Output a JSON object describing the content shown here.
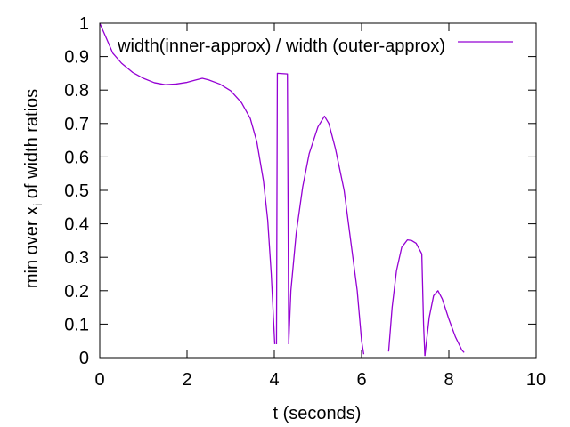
{
  "chart_data": {
    "type": "line",
    "title": "",
    "xlabel": "t (seconds)",
    "ylabel": "min over x",
    "ylabel_subscript": "i",
    "ylabel_suffix": " of width ratios",
    "xlim": [
      0,
      10
    ],
    "ylim": [
      0,
      1
    ],
    "xticks": [
      0,
      2,
      4,
      6,
      8,
      10
    ],
    "yticks": [
      0,
      0.1,
      0.2,
      0.3,
      0.4,
      0.5,
      0.6,
      0.7,
      0.8,
      0.9,
      1
    ],
    "ytick_labels": [
      "0",
      "0.1",
      "0.2",
      "0.3",
      "0.4",
      "0.5",
      "0.6",
      "0.7",
      "0.8",
      "0.9",
      "1"
    ],
    "xtick_labels": [
      "0",
      "2",
      "4",
      "6",
      "8",
      "10"
    ],
    "grid": false,
    "legend_position": "top-right",
    "series": [
      {
        "name": "width(inner-approx) / width (outer-approx)",
        "color": "#9400d3",
        "segments": [
          [
            [
              0.0,
              1.0
            ],
            [
              0.15,
              0.955
            ],
            [
              0.3,
              0.91
            ],
            [
              0.5,
              0.88
            ],
            [
              0.75,
              0.853
            ],
            [
              1.0,
              0.835
            ],
            [
              1.25,
              0.822
            ],
            [
              1.5,
              0.816
            ],
            [
              1.75,
              0.818
            ],
            [
              2.0,
              0.823
            ],
            [
              2.2,
              0.83
            ],
            [
              2.35,
              0.835
            ],
            [
              2.5,
              0.83
            ],
            [
              2.75,
              0.818
            ],
            [
              3.0,
              0.798
            ],
            [
              3.25,
              0.762
            ],
            [
              3.45,
              0.715
            ],
            [
              3.6,
              0.645
            ],
            [
              3.75,
              0.53
            ],
            [
              3.85,
              0.41
            ],
            [
              3.93,
              0.25
            ],
            [
              3.98,
              0.12
            ],
            [
              4.01,
              0.04
            ]
          ],
          [
            [
              4.05,
              0.04
            ],
            [
              4.07,
              0.85
            ],
            [
              4.3,
              0.848
            ],
            [
              4.33,
              0.04
            ]
          ],
          [
            [
              4.33,
              0.04
            ],
            [
              4.38,
              0.2
            ],
            [
              4.5,
              0.37
            ],
            [
              4.65,
              0.51
            ],
            [
              4.8,
              0.61
            ],
            [
              5.0,
              0.69
            ],
            [
              5.15,
              0.722
            ],
            [
              5.25,
              0.7
            ],
            [
              5.4,
              0.625
            ],
            [
              5.6,
              0.5
            ],
            [
              5.75,
              0.35
            ],
            [
              5.9,
              0.2
            ],
            [
              6.0,
              0.05
            ],
            [
              6.05,
              0.01
            ]
          ],
          [
            [
              6.62,
              0.018
            ],
            [
              6.7,
              0.15
            ],
            [
              6.8,
              0.26
            ],
            [
              6.92,
              0.33
            ],
            [
              7.05,
              0.352
            ],
            [
              7.15,
              0.35
            ],
            [
              7.25,
              0.342
            ],
            [
              7.38,
              0.31
            ],
            [
              7.42,
              0.1
            ],
            [
              7.45,
              0.005
            ]
          ],
          [
            [
              7.45,
              0.005
            ],
            [
              7.55,
              0.12
            ],
            [
              7.65,
              0.185
            ],
            [
              7.75,
              0.2
            ],
            [
              7.85,
              0.175
            ],
            [
              8.0,
              0.115
            ],
            [
              8.15,
              0.062
            ],
            [
              8.3,
              0.022
            ],
            [
              8.35,
              0.015
            ]
          ]
        ]
      }
    ]
  }
}
